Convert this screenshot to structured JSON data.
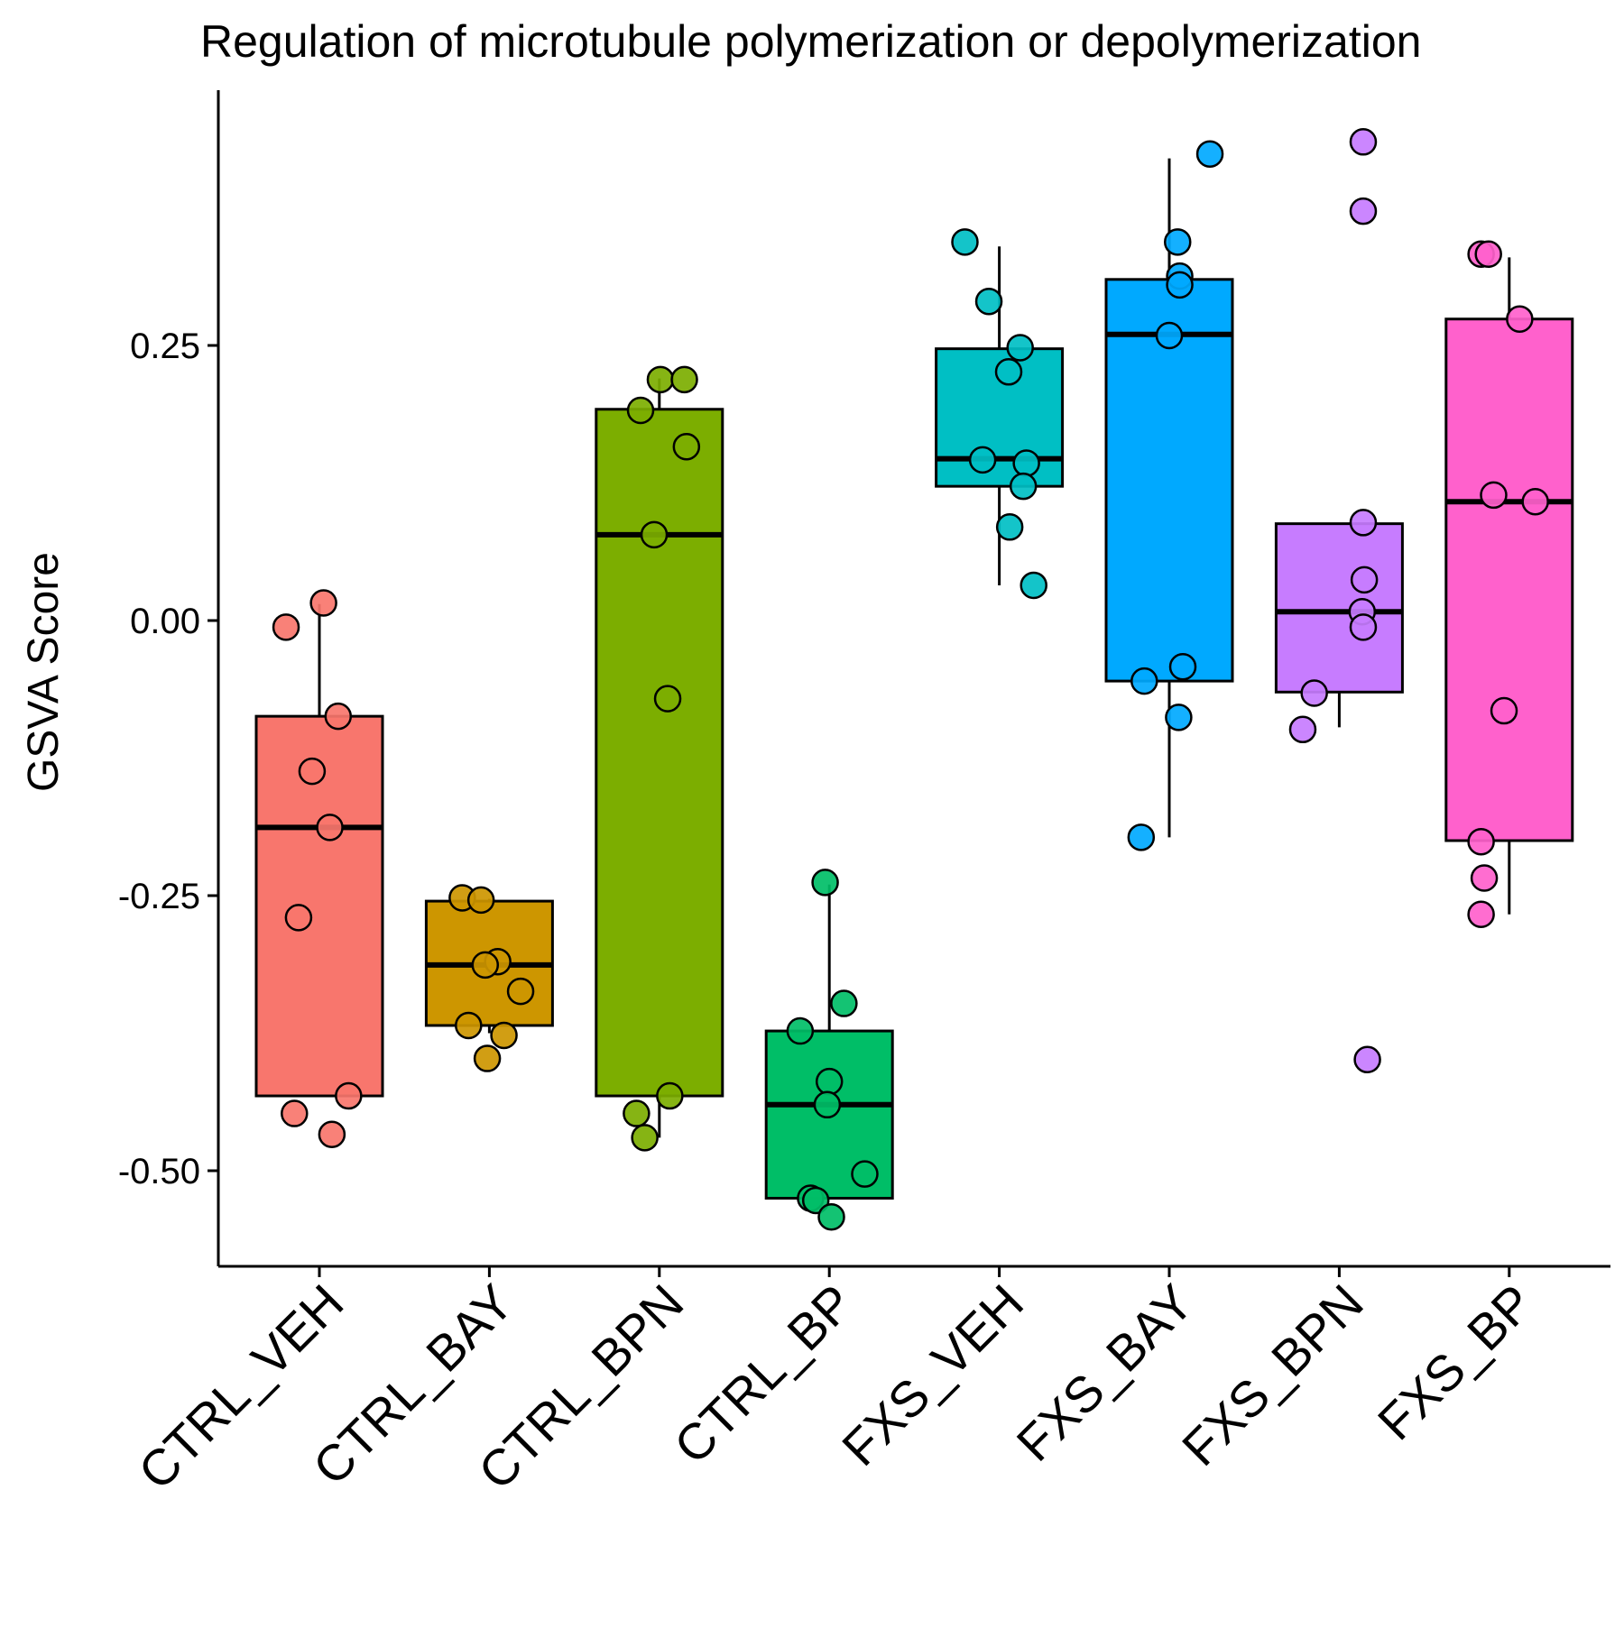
{
  "chart_data": {
    "type": "box",
    "title": "Regulation of microtubule polymerization or depolymerization",
    "xlabel": "",
    "ylabel": "GSVA Score",
    "ylim": [
      -0.585,
      0.48
    ],
    "yticks": [
      0.25,
      0.0,
      -0.25,
      -0.5
    ],
    "ytick_labels": [
      "0.25",
      "0.00",
      "-0.25",
      "-0.50"
    ],
    "grid": false,
    "legend": "none",
    "categories": [
      "CTRL_VEH",
      "CTRL_BAY",
      "CTRL_BPN",
      "CTRL_BP",
      "FXS_VEH",
      "FXS_BAY",
      "FXS_BPN",
      "FXS_BP"
    ],
    "colors": [
      "#F8766D",
      "#CD9600",
      "#7CAE00",
      "#00BE67",
      "#00BFC4",
      "#00A9FF",
      "#C77CFF",
      "#FF61CC"
    ],
    "boxes": [
      {
        "category": "CTRL_VEH",
        "whisker_low": -0.432,
        "q1": -0.432,
        "median": -0.188,
        "q3": -0.087,
        "whisker_high": 0.015
      },
      {
        "category": "CTRL_BAY",
        "whisker_low": -0.375,
        "q1": -0.368,
        "median": -0.313,
        "q3": -0.255,
        "whisker_high": -0.253
      },
      {
        "category": "CTRL_BPN",
        "whisker_low": -0.47,
        "q1": -0.432,
        "median": 0.078,
        "q3": 0.192,
        "whisker_high": 0.22
      },
      {
        "category": "CTRL_BP",
        "whisker_low": -0.525,
        "q1": -0.525,
        "median": -0.44,
        "q3": -0.373,
        "whisker_high": -0.24
      },
      {
        "category": "FXS_VEH",
        "whisker_low": 0.032,
        "q1": 0.122,
        "median": 0.147,
        "q3": 0.247,
        "whisker_high": 0.34
      },
      {
        "category": "FXS_BAY",
        "whisker_low": -0.197,
        "q1": -0.055,
        "median": 0.26,
        "q3": 0.31,
        "whisker_high": 0.42
      },
      {
        "category": "FXS_BPN",
        "whisker_low": -0.097,
        "q1": -0.065,
        "median": 0.008,
        "q3": 0.088,
        "whisker_high": 0.088
      },
      {
        "category": "FXS_BP",
        "whisker_low": -0.267,
        "q1": -0.2,
        "median": 0.108,
        "q3": 0.274,
        "whisker_high": 0.33
      }
    ],
    "points": [
      {
        "category": "CTRL_VEH",
        "values": [
          0.016,
          -0.006,
          -0.087,
          -0.137,
          -0.188,
          -0.27,
          -0.432,
          -0.448,
          -0.467
        ]
      },
      {
        "category": "CTRL_BAY",
        "values": [
          -0.252,
          -0.254,
          -0.31,
          -0.313,
          -0.337,
          -0.368,
          -0.377,
          -0.398
        ]
      },
      {
        "category": "CTRL_BPN",
        "values": [
          0.219,
          0.219,
          0.191,
          0.158,
          0.078,
          -0.071,
          -0.432,
          -0.448,
          -0.47
        ]
      },
      {
        "category": "CTRL_BP",
        "values": [
          -0.238,
          -0.348,
          -0.373,
          -0.419,
          -0.44,
          -0.525,
          -0.527,
          -0.503,
          -0.542
        ]
      },
      {
        "category": "FXS_VEH",
        "values": [
          0.344,
          0.29,
          0.248,
          0.226,
          0.146,
          0.143,
          0.122,
          0.085,
          0.032
        ]
      },
      {
        "category": "FXS_BAY",
        "values": [
          0.424,
          0.344,
          0.313,
          0.305,
          0.259,
          -0.042,
          -0.055,
          -0.088,
          -0.197
        ]
      },
      {
        "category": "FXS_BPN",
        "values": [
          0.435,
          0.372,
          0.089,
          0.037,
          0.008,
          -0.006,
          -0.066,
          -0.099,
          -0.399
        ]
      },
      {
        "category": "FXS_BP",
        "values": [
          0.333,
          0.333,
          0.274,
          0.114,
          0.108,
          -0.082,
          -0.201,
          -0.234,
          -0.267
        ]
      }
    ]
  }
}
